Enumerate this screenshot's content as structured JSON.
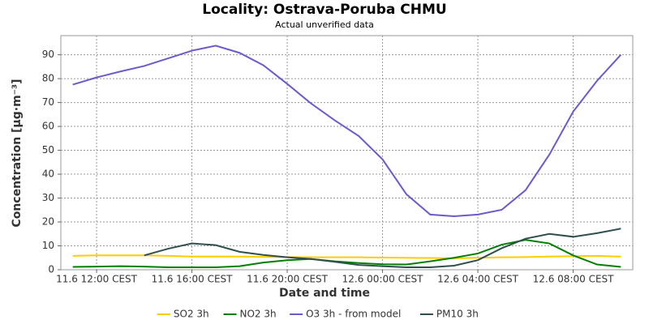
{
  "chart_data": {
    "type": "line",
    "title": "Locality: Ostrava-Poruba CHMU",
    "subtitle": "Actual unverified data",
    "x_label": "Date and time",
    "y_label": "Concentration [µg·m⁻³]",
    "categories": [
      null,
      "11.6 12:00 CEST",
      null,
      null,
      null,
      "11.6 16:00 CEST",
      null,
      null,
      null,
      "11.6 20:00 CEST",
      null,
      null,
      null,
      "12.6 00:00 CEST",
      null,
      null,
      null,
      "12.6 04:00 CEST",
      null,
      null,
      null,
      "12.6 08:00 CEST",
      null,
      null
    ],
    "ylim": [
      0,
      98
    ],
    "yticks": [
      0,
      10,
      20,
      30,
      40,
      50,
      60,
      70,
      80,
      90
    ],
    "grid": true,
    "legend": "bottom",
    "series": [
      {
        "name": "SO2 3h",
        "color": "#ffcc00",
        "values": [
          5.8,
          6,
          6,
          6,
          5.8,
          5.5,
          5.5,
          5.5,
          5.4,
          5.3,
          5.2,
          5.2,
          5.2,
          5.1,
          5,
          4.9,
          4.8,
          5,
          5.2,
          5.3,
          5.5,
          5.7,
          5.8,
          5.5
        ]
      },
      {
        "name": "NO2 3h",
        "color": "#008000",
        "values": [
          1.2,
          1.3,
          1.5,
          1.3,
          1,
          1,
          1,
          1.5,
          3,
          4,
          4.5,
          3.5,
          2.8,
          2.3,
          2.2,
          3.5,
          5,
          6.8,
          10.5,
          12.5,
          11,
          6,
          2.2,
          1.2
        ]
      },
      {
        "name": "O3 3h - from model",
        "color": "#6a5acd",
        "values": [
          77.5,
          80.5,
          83,
          85.3,
          88.5,
          91.7,
          93.8,
          90.8,
          85.6,
          77.8,
          69.6,
          62.5,
          56,
          46.2,
          31.6,
          23.1,
          22.4,
          23.1,
          25.1,
          33.3,
          48.2,
          66.2,
          79.1,
          90
        ]
      },
      {
        "name": "PM10 3h",
        "color": "#2f4f4f",
        "values": [
          null,
          null,
          null,
          6,
          8.8,
          11,
          10.3,
          7.5,
          6.2,
          5.2,
          4.5,
          3.3,
          2,
          1.5,
          1,
          1,
          1.7,
          4,
          9,
          13,
          15,
          13.8,
          15.3,
          17.2
        ]
      }
    ]
  }
}
